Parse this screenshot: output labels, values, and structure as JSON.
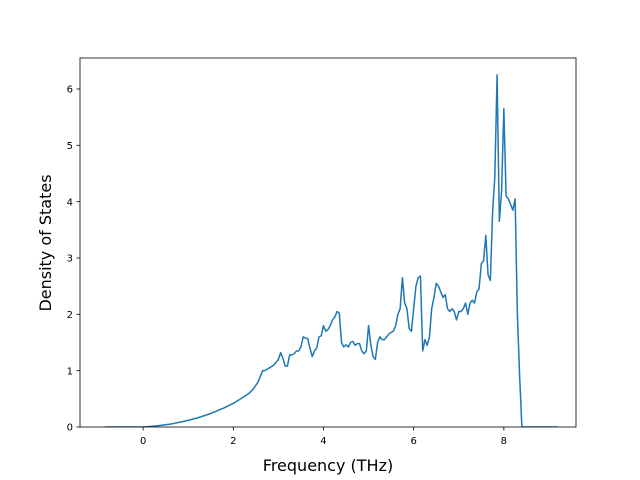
{
  "chart_data": {
    "type": "line",
    "title": "",
    "xlabel": "Frequency (THz)",
    "ylabel": "Density of States",
    "xlim": [
      -1.4,
      9.6
    ],
    "ylim": [
      0,
      6.55
    ],
    "xticks": [
      0,
      2,
      4,
      6,
      8
    ],
    "yticks": [
      0,
      1,
      2,
      3,
      4,
      5,
      6
    ],
    "grid": false,
    "legend": "none",
    "line_color": "#1f77b4",
    "series": [
      {
        "x": [
          -0.85,
          -0.5,
          0,
          0.3,
          0.6,
          0.9,
          1.2,
          1.5,
          1.8,
          2.0,
          2.2,
          2.35,
          2.45,
          2.55,
          2.6,
          2.65,
          2.7,
          2.8,
          2.9,
          2.95,
          3.0,
          3.05,
          3.1,
          3.15,
          3.2,
          3.25,
          3.3,
          3.35,
          3.4,
          3.45,
          3.5,
          3.55,
          3.6,
          3.65,
          3.7,
          3.75,
          3.8,
          3.85,
          3.9,
          3.95,
          4.0,
          4.05,
          4.1,
          4.15,
          4.2,
          4.25,
          4.3,
          4.35,
          4.4,
          4.45,
          4.5,
          4.55,
          4.6,
          4.65,
          4.7,
          4.75,
          4.8,
          4.85,
          4.9,
          4.95,
          5.0,
          5.05,
          5.1,
          5.15,
          5.2,
          5.25,
          5.3,
          5.35,
          5.4,
          5.45,
          5.5,
          5.55,
          5.6,
          5.65,
          5.7,
          5.75,
          5.8,
          5.85,
          5.9,
          5.95,
          6.0,
          6.05,
          6.1,
          6.15,
          6.2,
          6.25,
          6.3,
          6.35,
          6.4,
          6.45,
          6.5,
          6.55,
          6.6,
          6.65,
          6.7,
          6.75,
          6.8,
          6.85,
          6.9,
          6.95,
          7.0,
          7.05,
          7.1,
          7.15,
          7.2,
          7.25,
          7.3,
          7.35,
          7.4,
          7.45,
          7.5,
          7.55,
          7.6,
          7.65,
          7.7,
          7.75,
          7.8,
          7.85,
          7.9,
          7.95,
          8.0,
          8.05,
          8.1,
          8.15,
          8.2,
          8.25,
          8.3,
          8.35,
          8.4,
          8.6,
          9.2
        ],
        "y": [
          0,
          0,
          0,
          0.02,
          0.05,
          0.1,
          0.16,
          0.24,
          0.34,
          0.42,
          0.52,
          0.6,
          0.68,
          0.8,
          0.9,
          1.0,
          1.0,
          1.05,
          1.1,
          1.15,
          1.2,
          1.32,
          1.22,
          1.08,
          1.08,
          1.28,
          1.28,
          1.3,
          1.35,
          1.35,
          1.42,
          1.6,
          1.58,
          1.57,
          1.4,
          1.25,
          1.35,
          1.4,
          1.6,
          1.62,
          1.8,
          1.7,
          1.73,
          1.8,
          1.9,
          1.95,
          2.05,
          2.02,
          1.5,
          1.42,
          1.46,
          1.42,
          1.5,
          1.52,
          1.45,
          1.48,
          1.48,
          1.35,
          1.3,
          1.35,
          1.8,
          1.45,
          1.25,
          1.2,
          1.5,
          1.6,
          1.55,
          1.55,
          1.6,
          1.65,
          1.68,
          1.7,
          1.8,
          2.0,
          2.1,
          2.65,
          2.2,
          2.1,
          1.75,
          1.7,
          2.1,
          2.5,
          2.65,
          2.68,
          1.35,
          1.55,
          1.45,
          1.6,
          2.1,
          2.3,
          2.55,
          2.5,
          2.4,
          2.3,
          2.35,
          2.1,
          2.05,
          2.1,
          2.05,
          1.9,
          2.05,
          2.05,
          2.1,
          2.2,
          2.0,
          2.2,
          2.25,
          2.2,
          2.4,
          2.45,
          2.9,
          2.95,
          3.4,
          2.7,
          2.6,
          3.8,
          4.45,
          6.25,
          3.65,
          4.2,
          5.65,
          4.1,
          4.05,
          3.95,
          3.85,
          4.05,
          2.0,
          0.9,
          0.0,
          0,
          0
        ]
      }
    ]
  }
}
